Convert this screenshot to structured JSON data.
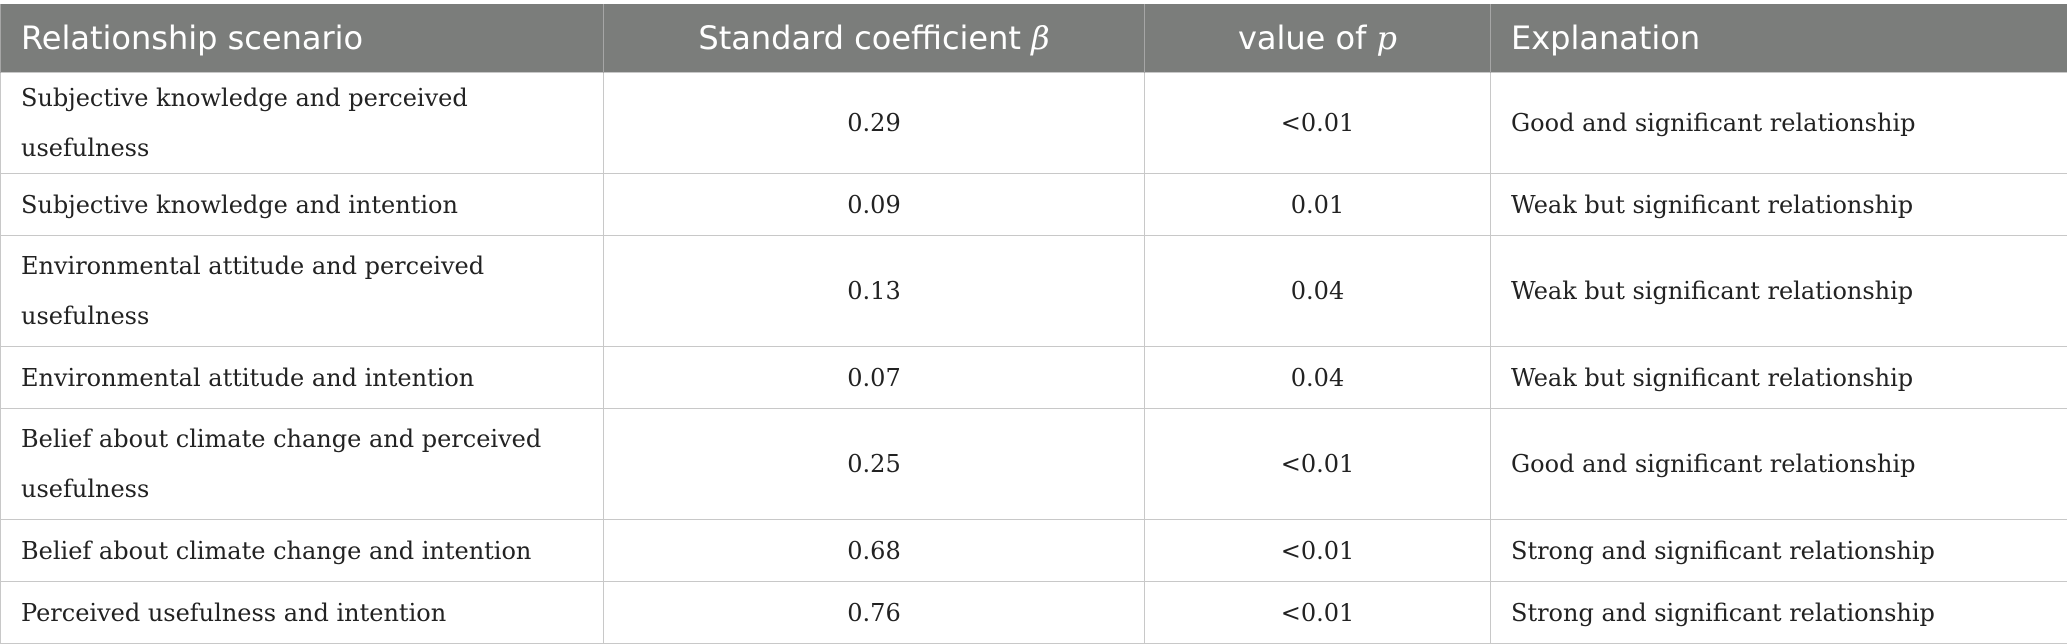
{
  "table": {
    "headers": {
      "relationship": "Relationship scenario",
      "coef_text": "Standard coefficient ",
      "coef_symbol": "β",
      "p_text": "value of ",
      "p_symbol": "p",
      "explanation": "Explanation"
    },
    "rows": [
      {
        "scenario": "Subjective knowledge and perceived usefulness",
        "beta": "0.29",
        "p": "<0.01",
        "explanation": "Good and significant relationship"
      },
      {
        "scenario": "Subjective knowledge and intention",
        "beta": "0.09",
        "p": "0.01",
        "explanation": "Weak but significant relationship"
      },
      {
        "scenario": "Environmental attitude and perceived usefulness",
        "beta": "0.13",
        "p": "0.04",
        "explanation": "Weak but significant relationship"
      },
      {
        "scenario": "Environmental attitude and intention",
        "beta": "0.07",
        "p": "0.04",
        "explanation": "Weak but significant relationship"
      },
      {
        "scenario": "Belief about climate change and perceived usefulness",
        "beta": "0.25",
        "p": "<0.01",
        "explanation": "Good and significant relationship"
      },
      {
        "scenario": "Belief about climate change and intention",
        "beta": "0.68",
        "p": "<0.01",
        "explanation": "Strong and significant relationship"
      },
      {
        "scenario": "Perceived usefulness and intention",
        "beta": "0.76",
        "p": "<0.01",
        "explanation": "Strong and significant relationship"
      }
    ]
  }
}
